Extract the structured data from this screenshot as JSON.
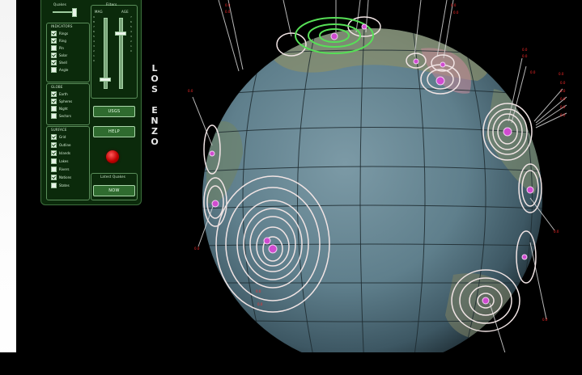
{
  "panel": {
    "top_slider_label": "Quakes",
    "indicators": {
      "title": "INDICATORS",
      "items": [
        {
          "label": "Rings",
          "checked": true
        },
        {
          "label": "Ring",
          "checked": true
        },
        {
          "label": "Pin",
          "checked": false
        },
        {
          "label": "Solar",
          "checked": true
        },
        {
          "label": "Shell",
          "checked": true
        },
        {
          "label": "Angle",
          "checked": false
        }
      ]
    },
    "globe": {
      "title": "GLOBE",
      "items": [
        {
          "label": "Earth",
          "checked": true
        },
        {
          "label": "Spheres",
          "checked": true
        },
        {
          "label": "Night",
          "checked": false
        },
        {
          "label": "Sectors",
          "checked": false
        }
      ]
    },
    "surface": {
      "title": "SURFACE",
      "items": [
        {
          "label": "Grid",
          "checked": true
        },
        {
          "label": "Outline",
          "checked": true
        },
        {
          "label": "Islands",
          "checked": true
        },
        {
          "label": "Lakes",
          "checked": false
        },
        {
          "label": "Rivers",
          "checked": false
        },
        {
          "label": "Nations",
          "checked": true
        },
        {
          "label": "States",
          "checked": false
        }
      ]
    },
    "filters": {
      "title": "Filters",
      "col_left": "MAG",
      "col_right": "AGE",
      "left_ticks": [
        "9",
        "8",
        "7",
        "6",
        "5",
        "4",
        "3",
        "2",
        "1",
        "0"
      ],
      "right_ticks": [
        "7",
        "6",
        "5",
        "4",
        "3",
        "2",
        "1",
        "0"
      ],
      "mag_level": 0.12,
      "age_level": 0.78
    },
    "usgs_button": "USGS",
    "help_button": "HELP",
    "latest_quakes_label": "Latest Quakes",
    "now_button": "NOW"
  },
  "vertical_title": [
    "L",
    "O",
    "S",
    "",
    "E",
    "N",
    "Z",
    "O"
  ],
  "colors": {
    "panel_bg": "#0b2a0b",
    "panel_border": "#3d6f3d",
    "ring_color": "#f1e4e4",
    "quake_center": "#d04bd0",
    "highlight_ring": "#57e057",
    "label_red": "#ff2a2a"
  },
  "globe_labels": [
    "0.0",
    "0.0",
    "0.0",
    "0.0",
    "0.0",
    "0.0",
    "0.0",
    "0.0",
    "0.0",
    "0.0",
    "0.0",
    "0.0",
    "0.0",
    "0.0",
    "0.0",
    "0.0",
    "0.0",
    "0.0",
    "0.0",
    "0.0"
  ]
}
